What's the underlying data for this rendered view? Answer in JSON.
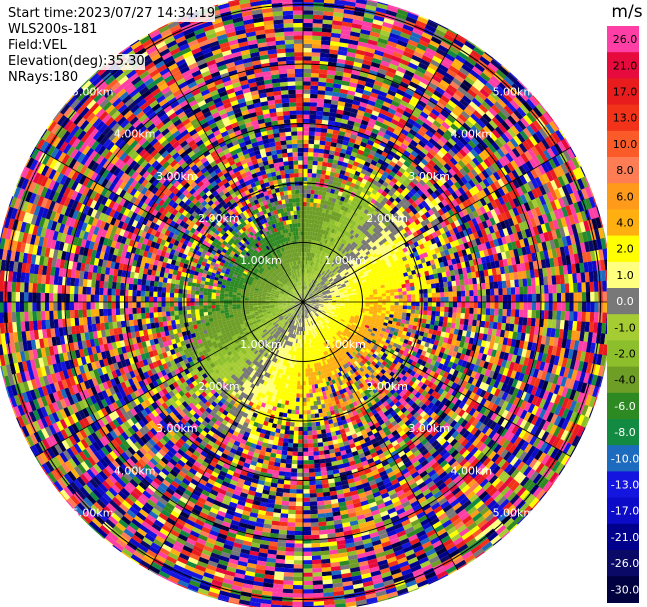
{
  "header": {
    "start_label": "Start time:",
    "start_value": "2023/07/27 14:34:19",
    "instrument": "WLS200s-181",
    "field_label": "Field:",
    "field_value": "VEL",
    "elev_label": "Elevation(deg):",
    "elev_value": "35.30",
    "nrays_label": "NRays:",
    "nrays_value": "180"
  },
  "chart_data": {
    "type": "heatmap",
    "subtype": "ppi-polar",
    "field": "VEL",
    "elevation_deg": 35.3,
    "n_rays": 180,
    "max_range_km": 5.2,
    "range_rings_km": [
      1,
      2,
      3,
      4,
      5
    ],
    "ring_labels": [
      "1.00km",
      "2.00km",
      "3.00km",
      "4.00km",
      "5.00km"
    ],
    "spoke_angles_deg": [
      0,
      30,
      60,
      90,
      120,
      150,
      180,
      210,
      240,
      270,
      300,
      330
    ],
    "colorbar": {
      "unit": "m/s",
      "ticks": [
        "26.0",
        "21.0",
        "17.0",
        "13.0",
        "10.0",
        "8.0",
        "6.0",
        "4.0",
        "2.0",
        "1.0",
        "0.0",
        "-1.0",
        "-2.0",
        "-4.0",
        "-6.0",
        "-8.0",
        "-10.0",
        "-13.0",
        "-17.0",
        "-21.0",
        "-26.0",
        "-30.0"
      ],
      "colors": [
        "#ff3fa6",
        "#e60b3c",
        "#e81c1c",
        "#f2331a",
        "#fa5b28",
        "#ff7d55",
        "#ff9a1a",
        "#ffb010",
        "#ffff00",
        "#ffff80",
        "#787878",
        "#a5cc33",
        "#8cbf2b",
        "#6e9e26",
        "#2d8a22",
        "#138a42",
        "#1d6bbf",
        "#1515e0",
        "#0c0cc8",
        "#00008c",
        "#0a0a66",
        "#000040"
      ]
    }
  }
}
